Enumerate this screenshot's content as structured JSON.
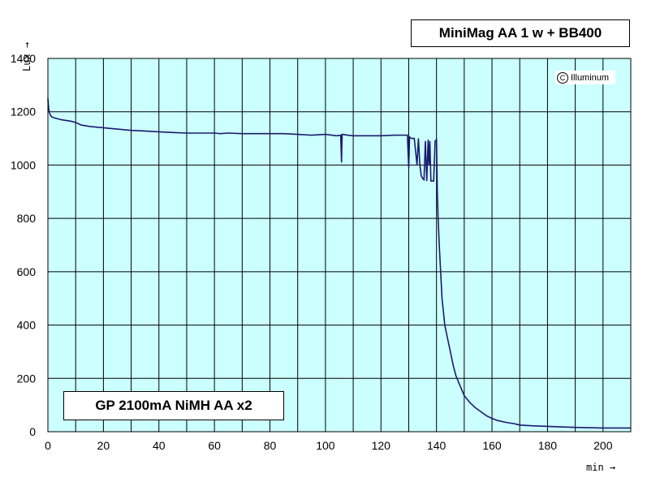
{
  "chart_data": {
    "type": "line",
    "title": "MiniMag AA 1 w + BB400",
    "legend_text": "GP 2100mA NiMH AA x2",
    "watermark": "Illuminum",
    "watermark_symbol": "C",
    "xlabel": "min →",
    "ylabel": "Lux →",
    "xlim": [
      0,
      210
    ],
    "ylim": [
      0,
      1400
    ],
    "x_ticks": [
      0,
      20,
      40,
      60,
      80,
      100,
      120,
      140,
      160,
      180,
      200
    ],
    "y_ticks": [
      0,
      200,
      400,
      600,
      800,
      1000,
      1200,
      1400
    ],
    "x_gridline_step": 10,
    "y_gridline_step": 200,
    "grid": true,
    "plot_background": "#ccffff",
    "line_color": "#1a1a6e",
    "series": [
      {
        "name": "",
        "x": [
          0,
          0.3,
          0.6,
          1,
          1.5,
          2,
          3,
          4,
          5,
          6,
          8,
          10,
          12,
          15,
          18,
          20,
          25,
          30,
          35,
          40,
          45,
          50,
          55,
          60,
          62,
          65,
          70,
          75,
          80,
          85,
          90,
          95,
          100,
          104,
          105.5,
          105.8,
          106,
          108,
          110,
          115,
          120,
          125,
          129.5,
          130,
          130.3,
          131,
          132,
          133,
          133.5,
          134,
          134.5,
          135,
          135.5,
          136,
          136.5,
          137,
          137.3,
          137.6,
          138,
          138.3,
          138.6,
          139,
          139.5,
          140,
          140.3,
          140.6,
          141,
          141.5,
          142,
          142.5,
          143,
          144,
          145,
          146,
          147,
          148,
          149,
          150,
          152,
          154,
          156,
          158,
          160,
          162,
          165,
          168,
          170,
          175,
          180,
          185,
          190,
          195,
          200,
          205,
          210
        ],
        "y": [
          1250,
          1210,
          1195,
          1185,
          1180,
          1178,
          1175,
          1172,
          1170,
          1168,
          1165,
          1160,
          1150,
          1145,
          1142,
          1140,
          1135,
          1130,
          1128,
          1125,
          1122,
          1120,
          1120,
          1120,
          1118,
          1120,
          1118,
          1118,
          1118,
          1118,
          1115,
          1112,
          1115,
          1110,
          1112,
          1010,
          1115,
          1112,
          1110,
          1110,
          1110,
          1112,
          1112,
          990,
          1105,
          1100,
          1100,
          1000,
          1100,
          1000,
          960,
          950,
          945,
          1090,
          940,
          1095,
          1000,
          1090,
          940,
          940,
          940,
          940,
          1090,
          1095,
          900,
          800,
          700,
          600,
          500,
          450,
          400,
          350,
          300,
          250,
          210,
          185,
          160,
          135,
          110,
          90,
          75,
          60,
          50,
          42,
          35,
          30,
          25,
          22,
          20,
          18,
          16,
          15,
          14,
          14,
          14
        ]
      }
    ]
  }
}
